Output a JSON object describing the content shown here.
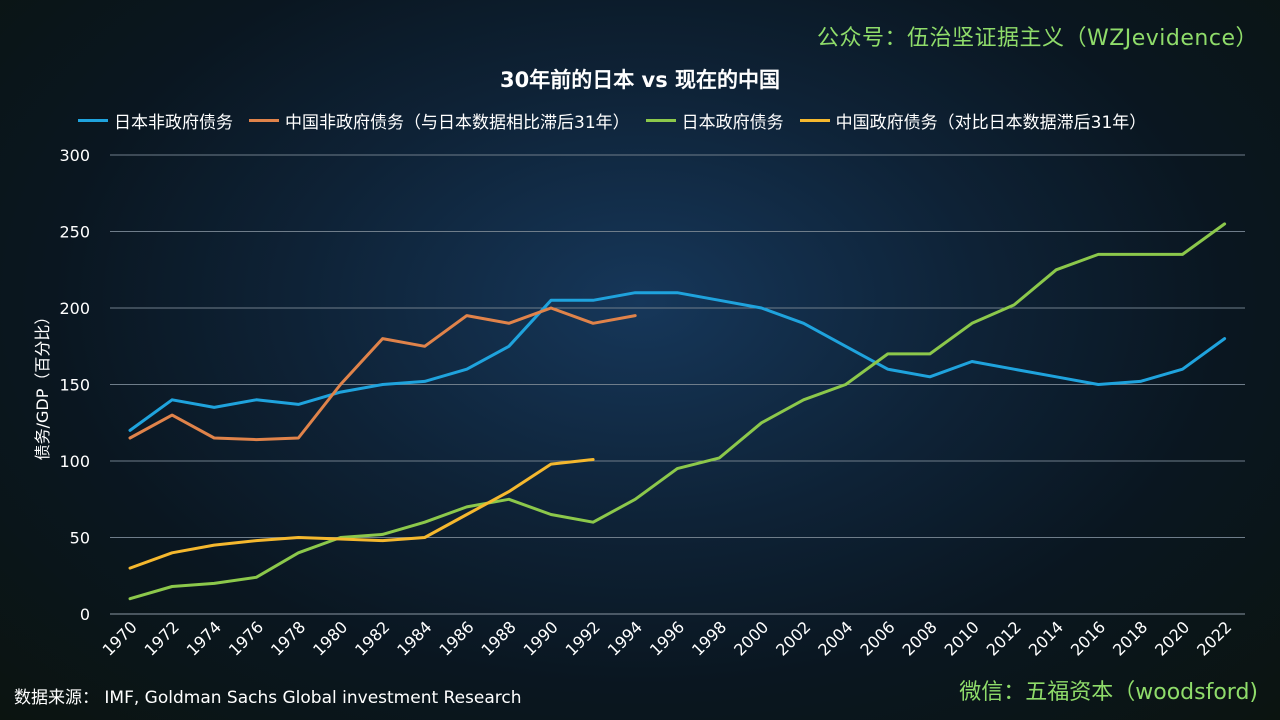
{
  "watermark_top": "公众号：伍治坚证据主义（WZJevidence）",
  "watermark_bottom": "微信：五福资本（woodsford)",
  "source_text": "数据来源： IMF, Goldman Sachs Global investment Research",
  "chart_data": {
    "type": "line",
    "title": "30年前的日本 vs 现在的中国",
    "xlabel": "",
    "ylabel": "债务/GDP（百分比）",
    "ylim": [
      0,
      300
    ],
    "yticks": [
      0,
      50,
      100,
      150,
      200,
      250,
      300
    ],
    "grid": true,
    "legend_position": "top",
    "categories": [
      "1970",
      "1972",
      "1974",
      "1976",
      "1978",
      "1980",
      "1982",
      "1984",
      "1986",
      "1988",
      "1990",
      "1992",
      "1994",
      "1996",
      "1998",
      "2000",
      "2002",
      "2004",
      "2006",
      "2008",
      "2010",
      "2012",
      "2014",
      "2016",
      "2018",
      "2020",
      "2022"
    ],
    "series": [
      {
        "name": "日本非政府债务",
        "color": "#1fa3dd",
        "values": [
          120,
          140,
          135,
          140,
          137,
          145,
          150,
          152,
          160,
          175,
          205,
          205,
          210,
          210,
          205,
          200,
          190,
          175,
          160,
          155,
          165,
          160,
          155,
          150,
          152,
          160,
          180
        ]
      },
      {
        "name": "中国非政府债务（与日本数据相比滞后31年）",
        "color": "#e0834a",
        "values": [
          115,
          130,
          115,
          114,
          115,
          150,
          180,
          175,
          195,
          190,
          200,
          190,
          195,
          null,
          null,
          null,
          null,
          null,
          null,
          null,
          null,
          null,
          null,
          null,
          null,
          null,
          null
        ]
      },
      {
        "name": "日本政府债务",
        "color": "#8cc84b",
        "values": [
          10,
          18,
          20,
          24,
          40,
          50,
          52,
          60,
          70,
          75,
          65,
          60,
          75,
          95,
          102,
          125,
          140,
          150,
          170,
          170,
          190,
          202,
          225,
          235,
          235,
          235,
          255
        ]
      },
      {
        "name": "中国政府债务（对比日本数据滞后31年）",
        "color": "#f5b82e",
        "values": [
          30,
          40,
          45,
          48,
          50,
          49,
          48,
          50,
          65,
          80,
          98,
          101,
          null,
          null,
          null,
          null,
          null,
          null,
          null,
          null,
          null,
          null,
          null,
          null,
          null,
          null,
          null
        ]
      }
    ]
  }
}
